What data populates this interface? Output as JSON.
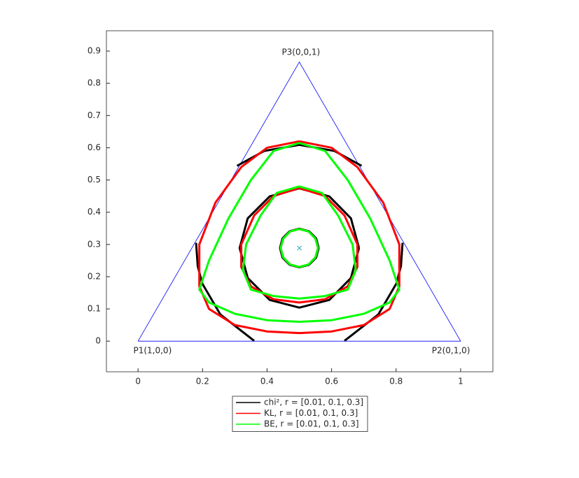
{
  "chart_data": {
    "type": "line",
    "xlim": [
      -0.098,
      1.1
    ],
    "ylim": [
      -0.095,
      0.963
    ],
    "xticks": [
      0,
      0.2,
      0.4,
      0.6,
      0.8,
      1
    ],
    "yticks": [
      0,
      0.1,
      0.2,
      0.3,
      0.4,
      0.5,
      0.6,
      0.7,
      0.8,
      0.9
    ],
    "simplex": {
      "color": "#0000ff",
      "x": [
        0,
        1,
        0.5,
        0
      ],
      "y": [
        0,
        0,
        0.866,
        0
      ]
    },
    "center": {
      "color": "#2aa8c8",
      "x": 0.5,
      "y": 0.2887
    },
    "annotations": [
      {
        "text": "P1(1,0,0)",
        "x": 0.045,
        "y": -0.03
      },
      {
        "text": "P2(0,1,0)",
        "x": 0.97,
        "y": -0.03
      },
      {
        "text": "P3(0,0,1)",
        "x": 0.505,
        "y": 0.896
      }
    ],
    "series": [
      {
        "name": "chi², r = [0.01, 0.1, 0.3]",
        "color": "#000000",
        "x": [
          0.56,
          0.552,
          0.53,
          0.5,
          0.47,
          0.448,
          0.44,
          0.448,
          0.47,
          0.5,
          0.53,
          0.552,
          0.56,
          null,
          0.685,
          0.66,
          0.593,
          0.5,
          0.408,
          0.34,
          0.315,
          0.34,
          0.408,
          0.5,
          0.593,
          0.66,
          0.685,
          null,
          0.693,
          0.609,
          0.5,
          0.391,
          0.307,
          null,
          0.18,
          0.185,
          0.199,
          0.255,
          0.36,
          null,
          0.64,
          0.745,
          0.801,
          0.815,
          0.82
        ],
        "y": [
          0.289,
          0.319,
          0.341,
          0.349,
          0.341,
          0.319,
          0.289,
          0.259,
          0.237,
          0.229,
          0.237,
          0.259,
          0.289,
          null,
          0.289,
          0.381,
          0.449,
          0.474,
          0.449,
          0.381,
          0.289,
          0.196,
          0.128,
          0.104,
          0.128,
          0.196,
          0.289,
          null,
          0.544,
          0.59,
          0.609,
          0.59,
          0.544,
          null,
          0.305,
          0.233,
          0.179,
          0.083,
          0.001,
          null,
          0.001,
          0.083,
          0.179,
          0.233,
          0.305
        ]
      },
      {
        "name": "KL, r = [0.01, 0.1, 0.3]",
        "color": "#ff0000",
        "x": [
          0.558,
          0.55,
          0.529,
          0.5,
          0.471,
          0.45,
          0.442,
          0.45,
          0.471,
          0.5,
          0.529,
          0.55,
          0.558,
          null,
          0.5,
          0.58,
          0.64,
          0.68,
          0.68,
          0.65,
          0.58,
          0.5,
          0.42,
          0.35,
          0.32,
          0.32,
          0.36,
          0.42,
          0.5,
          null,
          0.5,
          0.6,
          0.68,
          0.76,
          0.81,
          0.81,
          0.78,
          0.7,
          0.6,
          0.5,
          0.4,
          0.3,
          0.22,
          0.19,
          0.19,
          0.24,
          0.32,
          0.4,
          0.5
        ],
        "y": [
          0.289,
          0.318,
          0.34,
          0.348,
          0.34,
          0.318,
          0.289,
          0.26,
          0.238,
          0.23,
          0.238,
          0.26,
          0.289,
          null,
          0.475,
          0.45,
          0.39,
          0.3,
          0.23,
          0.17,
          0.13,
          0.12,
          0.13,
          0.17,
          0.23,
          0.3,
          0.39,
          0.45,
          0.475,
          null,
          0.62,
          0.6,
          0.54,
          0.43,
          0.3,
          0.17,
          0.1,
          0.05,
          0.03,
          0.025,
          0.03,
          0.05,
          0.1,
          0.17,
          0.3,
          0.43,
          0.54,
          0.6,
          0.62
        ]
      },
      {
        "name": "BE, r = [0.01, 0.1, 0.3]",
        "color": "#00ff00",
        "x": [
          0.558,
          0.55,
          0.529,
          0.5,
          0.471,
          0.45,
          0.442,
          0.45,
          0.471,
          0.5,
          0.529,
          0.55,
          0.558,
          null,
          0.5,
          0.57,
          0.62,
          0.665,
          0.675,
          0.65,
          0.58,
          0.5,
          0.42,
          0.35,
          0.325,
          0.335,
          0.38,
          0.43,
          0.5,
          null,
          0.5,
          0.58,
          0.65,
          0.72,
          0.78,
          0.81,
          0.78,
          0.7,
          0.6,
          0.5,
          0.4,
          0.3,
          0.22,
          0.19,
          0.22,
          0.28,
          0.35,
          0.42,
          0.5
        ],
        "y": [
          0.289,
          0.318,
          0.34,
          0.348,
          0.34,
          0.318,
          0.289,
          0.26,
          0.238,
          0.23,
          0.238,
          0.26,
          0.289,
          null,
          0.48,
          0.46,
          0.39,
          0.3,
          0.22,
          0.16,
          0.14,
          0.132,
          0.14,
          0.16,
          0.22,
          0.3,
          0.39,
          0.46,
          0.48,
          null,
          0.615,
          0.59,
          0.5,
          0.38,
          0.25,
          0.16,
          0.12,
          0.085,
          0.065,
          0.06,
          0.065,
          0.085,
          0.12,
          0.16,
          0.25,
          0.38,
          0.5,
          0.59,
          0.615
        ]
      }
    ]
  }
}
